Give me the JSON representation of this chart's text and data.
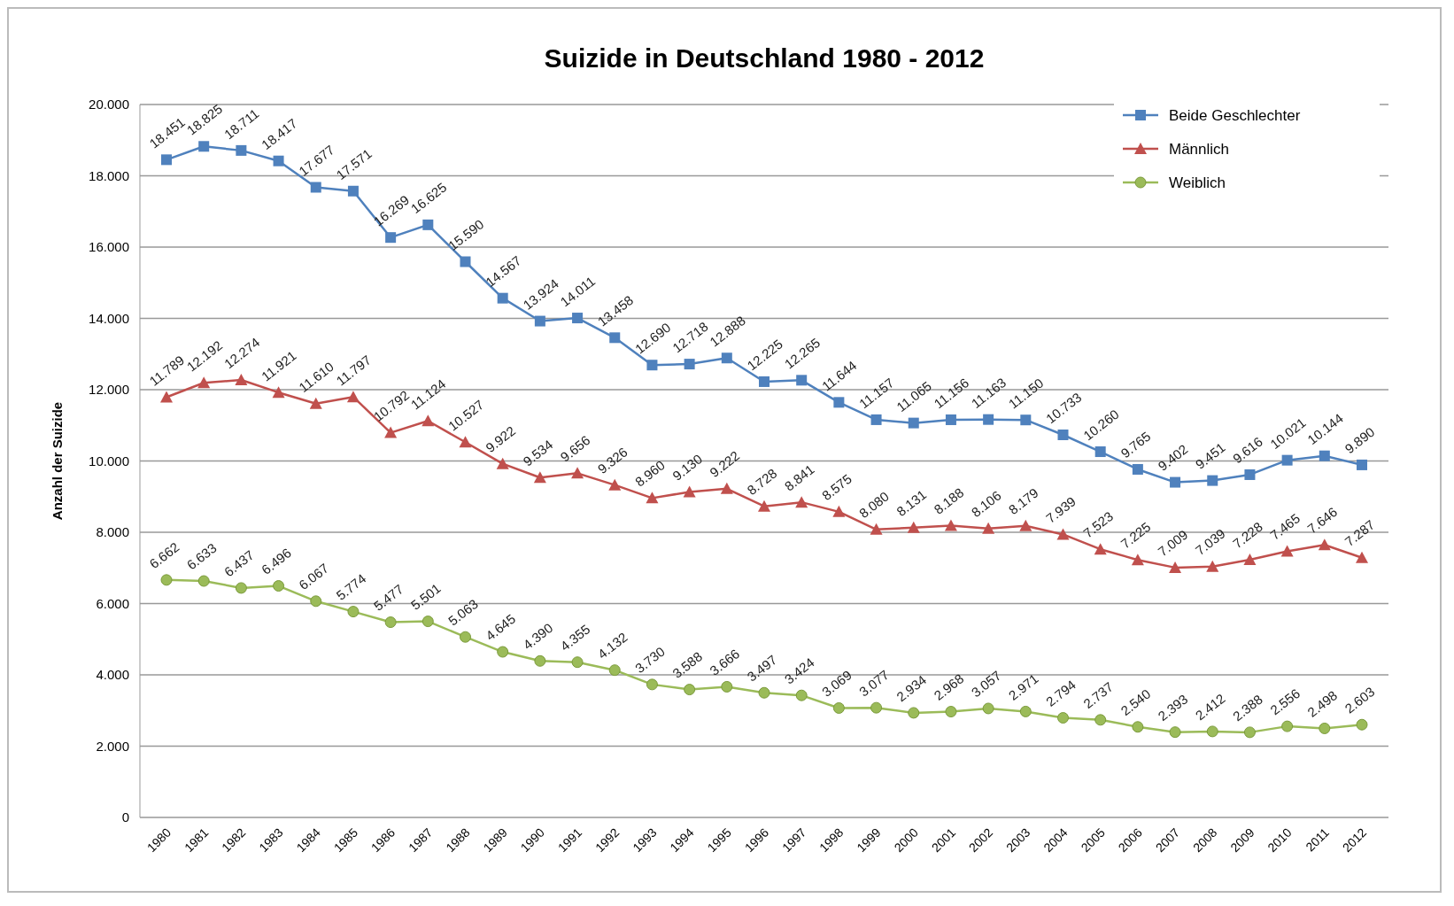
{
  "chart_data": {
    "type": "line",
    "title": "Suizide in Deutschland 1980 - 2012",
    "ylabel": "Anzahl der Suizide",
    "categories": [
      "1980",
      "1981",
      "1982",
      "1983",
      "1984",
      "1985",
      "1986",
      "1987",
      "1988",
      "1989",
      "1990",
      "1991",
      "1992",
      "1993",
      "1994",
      "1995",
      "1996",
      "1997",
      "1998",
      "1999",
      "2000",
      "2001",
      "2002",
      "2003",
      "2004",
      "2005",
      "2006",
      "2007",
      "2008",
      "2009",
      "2010",
      "2011",
      "2012"
    ],
    "series": [
      {
        "name": "Beide Geschlechter",
        "color": "#4f81bd",
        "marker": "square",
        "values": [
          18451,
          18825,
          18711,
          18417,
          17677,
          17571,
          16269,
          16625,
          15590,
          14567,
          13924,
          14011,
          13458,
          12690,
          12718,
          12888,
          12225,
          12265,
          11644,
          11157,
          11065,
          11156,
          11163,
          11150,
          10733,
          10260,
          9765,
          9402,
          9451,
          9616,
          10021,
          10144,
          9890
        ],
        "value_labels": [
          "18.451",
          "18.825",
          "18.711",
          "18.417",
          "17.677",
          "17.571",
          "16.269",
          "16.625",
          "15.590",
          "14.567",
          "13.924",
          "14.011",
          "13.458",
          "12.690",
          "12.718",
          "12.888",
          "12.225",
          "12.265",
          "11.644",
          "11.157",
          "11.065",
          "11.156",
          "11.163",
          "11.150",
          "10.733",
          "10.260",
          "9.765",
          "9.402",
          "9.451",
          "9.616",
          "10.021",
          "10.144",
          "9.890"
        ]
      },
      {
        "name": "Männlich",
        "color": "#c0504d",
        "marker": "triangle",
        "values": [
          11789,
          12192,
          12274,
          11921,
          11610,
          11797,
          10792,
          11124,
          10527,
          9922,
          9534,
          9656,
          9326,
          8960,
          9130,
          9222,
          8728,
          8841,
          8575,
          8080,
          8131,
          8188,
          8106,
          8179,
          7939,
          7523,
          7225,
          7009,
          7039,
          7228,
          7465,
          7646,
          7287
        ],
        "value_labels": [
          "11.789",
          "12.192",
          "12.274",
          "11.921",
          "11.610",
          "11.797",
          "10.792",
          "11.124",
          "10.527",
          "9.922",
          "9.534",
          "9.656",
          "9.326",
          "8.960",
          "9.130",
          "9.222",
          "8.728",
          "8.841",
          "8.575",
          "8.080",
          "8.131",
          "8.188",
          "8.106",
          "8.179",
          "7.939",
          "7.523",
          "7.225",
          "7.009",
          "7.039",
          "7.228",
          "7.465",
          "7.646",
          "7.287"
        ]
      },
      {
        "name": "Weiblich",
        "color": "#9bbb59",
        "marker": "circle",
        "values": [
          6662,
          6633,
          6437,
          6496,
          6067,
          5774,
          5477,
          5501,
          5063,
          4645,
          4390,
          4355,
          4132,
          3730,
          3588,
          3666,
          3497,
          3424,
          3069,
          3077,
          2934,
          2968,
          3057,
          2971,
          2794,
          2737,
          2540,
          2393,
          2412,
          2388,
          2556,
          2498,
          2603
        ],
        "value_labels": [
          "6.662",
          "6.633",
          "6.437",
          "6.496",
          "6.067",
          "5.774",
          "5.477",
          "5.501",
          "5.063",
          "4.645",
          "4.390",
          "4.355",
          "4.132",
          "3.730",
          "3.588",
          "3.666",
          "3.497",
          "3.424",
          "3.069",
          "3.077",
          "2.934",
          "2.968",
          "3.057",
          "2.971",
          "2.794",
          "2.737",
          "2.540",
          "2.393",
          "2.412",
          "2.388",
          "2.556",
          "2.498",
          "2.603"
        ]
      }
    ],
    "ylim": [
      0,
      20000
    ],
    "yticks": [
      0,
      {
        "value": 2000,
        "label": "2.000"
      },
      {
        "value": 4000,
        "label": "4.000"
      },
      {
        "value": 6000,
        "label": "6.000"
      },
      {
        "value": 8000,
        "label": "8.000"
      },
      {
        "value": 10000,
        "label": "10.000"
      },
      {
        "value": 12000,
        "label": "12.000"
      },
      {
        "value": 14000,
        "label": "14.000"
      },
      {
        "value": 16000,
        "label": "16.000"
      },
      {
        "value": 18000,
        "label": "18.000"
      },
      {
        "value": 20000,
        "label": "20.000"
      }
    ],
    "grid": "y",
    "legend": "top right"
  }
}
